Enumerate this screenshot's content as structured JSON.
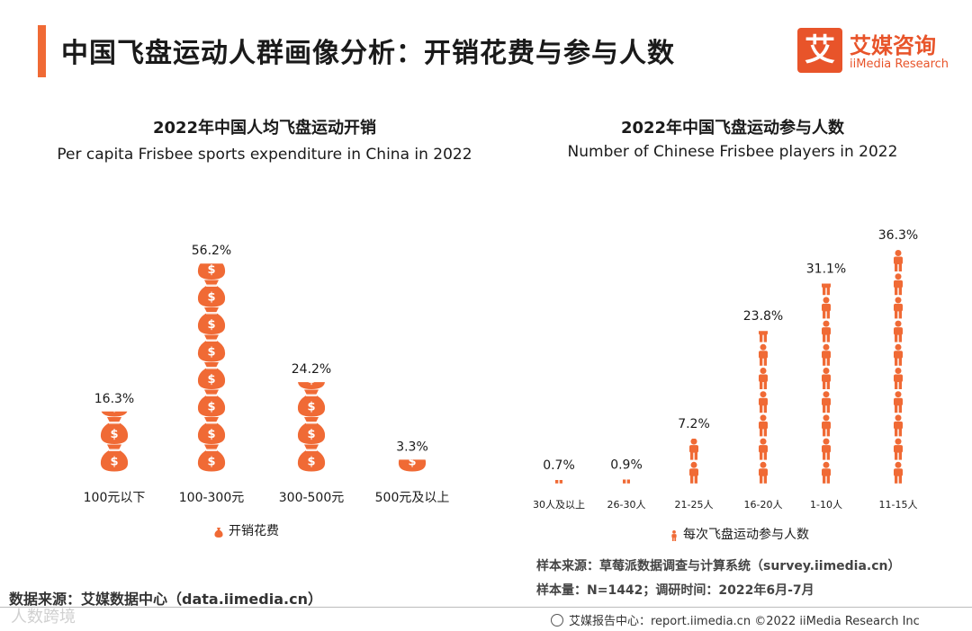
{
  "page": {
    "title": "中国飞盘运动人群画像分析：开销花费与参与人数"
  },
  "logo": {
    "mark": "艾",
    "name_cn": "艾媒咨询",
    "name_en": "iiMedia Research"
  },
  "left_chart": {
    "title_cn": "2022年中国人均飞盘运动开销",
    "title_en": "Per capita Frisbee sports expenditure in China in 2022",
    "legend": "开销花费"
  },
  "right_chart": {
    "title_cn": "2022年中国飞盘运动参与人数",
    "title_en": "Number of Chinese Frisbee players in 2022",
    "legend": "每次飞盘运动参与人数"
  },
  "chart_data": [
    {
      "type": "bar",
      "title": "2022年中国人均飞盘运动开销",
      "subtitle": "Per capita Frisbee sports expenditure in China in 2022",
      "categories": [
        "100元以下",
        "100-300元",
        "300-500元",
        "500元及以上"
      ],
      "values": [
        16.3,
        56.2,
        24.2,
        3.3
      ],
      "labels": [
        "16.3%",
        "56.2%",
        "24.2%",
        "3.3%"
      ],
      "unit": "%",
      "legend": "开销花费",
      "color": "#f06a35",
      "mark": "money-bag-pictogram",
      "ylim": [
        0,
        60
      ]
    },
    {
      "type": "bar",
      "title": "2022年中国飞盘运动参与人数",
      "subtitle": "Number of Chinese Frisbee players in 2022",
      "categories": [
        "30人及以上",
        "26-30人",
        "21-25人",
        "16-20人",
        "1-10人",
        "11-15人"
      ],
      "values": [
        0.7,
        0.9,
        7.2,
        23.8,
        31.1,
        36.3
      ],
      "labels": [
        "0.7%",
        "0.9%",
        "7.2%",
        "23.8%",
        "31.1%",
        "36.3%"
      ],
      "unit": "%",
      "legend": "每次飞盘运动参与人数",
      "color": "#f06a35",
      "mark": "person-pictogram",
      "ylim": [
        0,
        40
      ]
    }
  ],
  "sources": {
    "data_source": "数据来源：艾媒数据中心（data.iimedia.cn）",
    "sample_source": "样本来源：草莓派数据调查与计算系统（survey.iimedia.cn）",
    "sample_size": "样本量：N=1442；调研时间：2022年6月-7月"
  },
  "footer": {
    "text": "艾媒报告中心：report.iimedia.cn  ©2022  iiMedia Research  Inc"
  },
  "watermark": "人数跨境"
}
